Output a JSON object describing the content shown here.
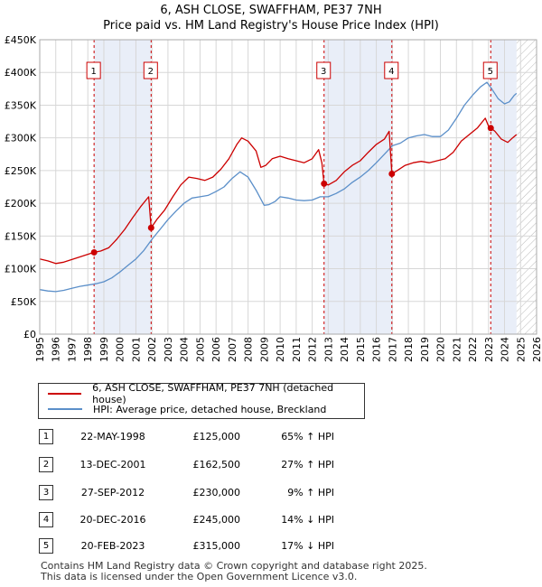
{
  "title_line1": "6, ASH CLOSE, SWAFFHAM, PE37 7NH",
  "title_line2": "Price paid vs. HM Land Registry's House Price Index (HPI)",
  "colors": {
    "property": "#cc0000",
    "hpi": "#5b8fc9",
    "shade": "#e9eef8",
    "marker_line": "#cc0000"
  },
  "chart_data": {
    "type": "line",
    "title": "Price paid vs. HM Land Registry's House Price Index (HPI)",
    "xlabel": "",
    "ylabel": "",
    "xlim": [
      1995,
      2026
    ],
    "ylim": [
      0,
      450000
    ],
    "x_ticks": [
      "1995",
      "1996",
      "1997",
      "1998",
      "1999",
      "2000",
      "2001",
      "2002",
      "2003",
      "2004",
      "2005",
      "2006",
      "2007",
      "2008",
      "2009",
      "2010",
      "2011",
      "2012",
      "2013",
      "2014",
      "2015",
      "2016",
      "2017",
      "2018",
      "2019",
      "2020",
      "2021",
      "2022",
      "2023",
      "2024",
      "2025",
      "2026"
    ],
    "y_ticks": [
      0,
      50000,
      100000,
      150000,
      200000,
      250000,
      300000,
      350000,
      400000,
      450000
    ],
    "y_tick_labels": [
      "£0",
      "£50K",
      "£100K",
      "£150K",
      "£200K",
      "£250K",
      "£300K",
      "£350K",
      "£400K",
      "£450K"
    ],
    "shaded_spans": [
      [
        1998.39,
        2001.95
      ],
      [
        2012.74,
        2016.97
      ],
      [
        2023.14,
        2024.75
      ]
    ],
    "forecast_start": 2024.75,
    "series": [
      {
        "name": "6, ASH CLOSE, SWAFFHAM, PE37 7NH (detached house)",
        "color": "#cc0000",
        "x": [
          1995.0,
          1995.5,
          1996.0,
          1996.5,
          1997.0,
          1997.5,
          1998.0,
          1998.39,
          1998.8,
          1999.3,
          1999.8,
          2000.3,
          2000.8,
          2001.3,
          2001.8,
          2001.95,
          2002.3,
          2002.8,
          2003.3,
          2003.8,
          2004.3,
          2004.8,
          2005.3,
          2005.8,
          2006.3,
          2006.8,
          2007.3,
          2007.6,
          2008.0,
          2008.5,
          2008.8,
          2009.1,
          2009.5,
          2010.0,
          2010.5,
          2011.0,
          2011.5,
          2012.0,
          2012.4,
          2012.6,
          2012.74,
          2013.0,
          2013.5,
          2014.0,
          2014.5,
          2015.0,
          2015.5,
          2016.0,
          2016.5,
          2016.8,
          2016.97,
          2017.3,
          2017.8,
          2018.3,
          2018.8,
          2019.3,
          2019.8,
          2020.3,
          2020.8,
          2021.3,
          2021.8,
          2022.3,
          2022.8,
          2023.0,
          2023.14,
          2023.4,
          2023.8,
          2024.2,
          2024.5,
          2024.75
        ],
        "values": [
          115000,
          112000,
          108000,
          110000,
          114000,
          118000,
          122000,
          125000,
          127000,
          132000,
          145000,
          160000,
          178000,
          195000,
          210000,
          162500,
          175000,
          190000,
          210000,
          228000,
          240000,
          238000,
          235000,
          240000,
          252000,
          268000,
          290000,
          300000,
          295000,
          280000,
          255000,
          258000,
          268000,
          272000,
          268000,
          265000,
          262000,
          268000,
          282000,
          262000,
          230000,
          228000,
          235000,
          248000,
          258000,
          265000,
          278000,
          290000,
          298000,
          310000,
          245000,
          250000,
          258000,
          262000,
          264000,
          262000,
          265000,
          268000,
          278000,
          295000,
          305000,
          315000,
          330000,
          318000,
          315000,
          310000,
          298000,
          293000,
          300000,
          305000
        ],
        "sales": [
          {
            "id": "1",
            "x": 1998.39,
            "value": 125000
          },
          {
            "id": "2",
            "x": 2001.95,
            "value": 162500
          },
          {
            "id": "3",
            "x": 2012.74,
            "value": 230000
          },
          {
            "id": "4",
            "x": 2016.97,
            "value": 245000
          },
          {
            "id": "5",
            "x": 2023.14,
            "value": 315000
          }
        ]
      },
      {
        "name": "HPI: Average price, detached house, Breckland",
        "color": "#5b8fc9",
        "x": [
          1995.0,
          1995.5,
          1996.0,
          1996.5,
          1997.0,
          1997.5,
          1998.0,
          1998.5,
          1999.0,
          1999.5,
          2000.0,
          2000.5,
          2001.0,
          2001.5,
          2002.0,
          2002.5,
          2003.0,
          2003.5,
          2004.0,
          2004.5,
          2005.0,
          2005.5,
          2006.0,
          2006.5,
          2007.0,
          2007.5,
          2008.0,
          2008.5,
          2009.0,
          2009.3,
          2009.7,
          2010.0,
          2010.5,
          2011.0,
          2011.5,
          2012.0,
          2012.5,
          2013.0,
          2013.5,
          2014.0,
          2014.5,
          2015.0,
          2015.5,
          2016.0,
          2016.5,
          2017.0,
          2017.5,
          2018.0,
          2018.5,
          2019.0,
          2019.5,
          2020.0,
          2020.5,
          2021.0,
          2021.5,
          2022.0,
          2022.5,
          2022.9,
          2023.2,
          2023.6,
          2024.0,
          2024.3,
          2024.6,
          2024.75
        ],
        "values": [
          68000,
          66000,
          65000,
          67000,
          70000,
          73000,
          75000,
          77000,
          80000,
          86000,
          95000,
          105000,
          115000,
          128000,
          145000,
          160000,
          175000,
          188000,
          200000,
          208000,
          210000,
          212000,
          218000,
          225000,
          238000,
          248000,
          240000,
          220000,
          197000,
          198000,
          203000,
          210000,
          208000,
          205000,
          204000,
          205000,
          210000,
          210000,
          215000,
          222000,
          232000,
          240000,
          250000,
          262000,
          275000,
          288000,
          292000,
          300000,
          303000,
          305000,
          302000,
          302000,
          312000,
          330000,
          350000,
          365000,
          378000,
          385000,
          375000,
          360000,
          352000,
          355000,
          365000,
          368000
        ]
      }
    ]
  },
  "legend": {
    "property_label": "6, ASH CLOSE, SWAFFHAM, PE37 7NH (detached house)",
    "hpi_label": "HPI: Average price, detached house, Breckland"
  },
  "transactions": [
    {
      "num": "1",
      "date": "22-MAY-1998",
      "price": "£125,000",
      "hpi": "65% ↑ HPI"
    },
    {
      "num": "2",
      "date": "13-DEC-2001",
      "price": "£162,500",
      "hpi": "27% ↑ HPI"
    },
    {
      "num": "3",
      "date": "27-SEP-2012",
      "price": "£230,000",
      "hpi": "9% ↑ HPI"
    },
    {
      "num": "4",
      "date": "20-DEC-2016",
      "price": "£245,000",
      "hpi": "14% ↓ HPI"
    },
    {
      "num": "5",
      "date": "20-FEB-2023",
      "price": "£315,000",
      "hpi": "17% ↓ HPI"
    }
  ],
  "footer_line1": "Contains HM Land Registry data © Crown copyright and database right 2025.",
  "footer_line2": "This data is licensed under the Open Government Licence v3.0."
}
